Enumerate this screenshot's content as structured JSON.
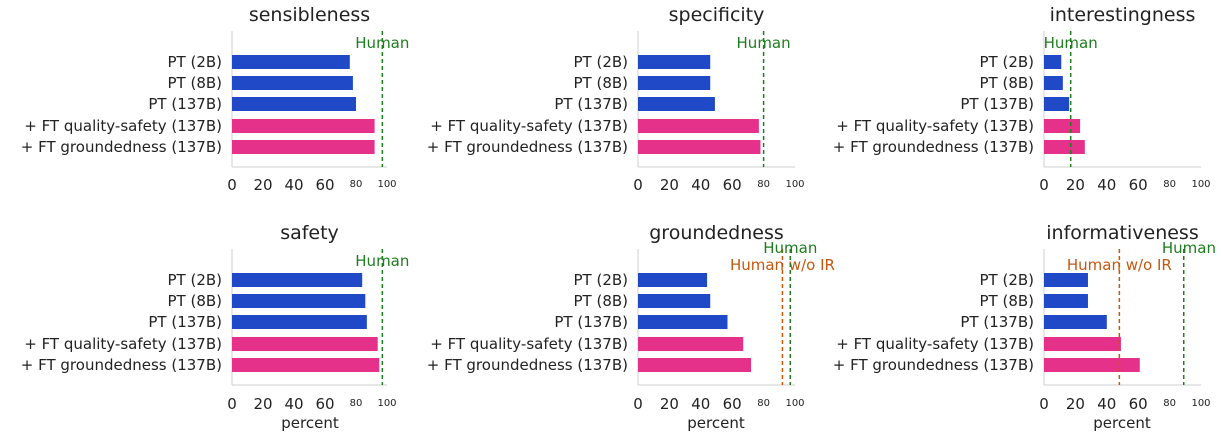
{
  "chart_data": [
    {
      "type": "bar",
      "orientation": "horizontal",
      "title": "sensibleness",
      "xlabel": "",
      "xlim": [
        0,
        100
      ],
      "xticks": [
        {
          "label": "0",
          "value": 0
        },
        {
          "label": "20",
          "value": 20
        },
        {
          "label": "40",
          "value": 40
        },
        {
          "label": "60",
          "value": 60
        },
        {
          "label": "80",
          "value": 80
        },
        {
          "label": "100",
          "value": 100
        }
      ],
      "categories": [
        "PT (2B)",
        "PT (8B)",
        "PT (137B)",
        "+ FT quality-safety (137B)",
        "+ FT groundedness (137B)"
      ],
      "values": [
        76,
        78,
        80,
        92,
        92
      ],
      "bar_colors": [
        "#1f49c7",
        "#1f49c7",
        "#1f49c7",
        "#e6318a",
        "#e6318a"
      ],
      "reference_lines": [
        {
          "label": "Human",
          "value": 97,
          "color": "#1e7d1e"
        }
      ]
    },
    {
      "type": "bar",
      "orientation": "horizontal",
      "title": "specificity",
      "xlabel": "",
      "xlim": [
        0,
        100
      ],
      "xticks": [
        {
          "label": "0",
          "value": 0
        },
        {
          "label": "20",
          "value": 20
        },
        {
          "label": "40",
          "value": 40
        },
        {
          "label": "60",
          "value": 60
        },
        {
          "label": "80",
          "value": 80
        },
        {
          "label": "100",
          "value": 100
        }
      ],
      "categories": [
        "PT (2B)",
        "PT (8B)",
        "PT (137B)",
        "+ FT quality-safety (137B)",
        "+ FT groundedness (137B)"
      ],
      "values": [
        46,
        46,
        49,
        77,
        78
      ],
      "bar_colors": [
        "#1f49c7",
        "#1f49c7",
        "#1f49c7",
        "#e6318a",
        "#e6318a"
      ],
      "reference_lines": [
        {
          "label": "Human",
          "value": 80,
          "color": "#1e7d1e"
        }
      ]
    },
    {
      "type": "bar",
      "orientation": "horizontal",
      "title": "interestingness",
      "xlabel": "",
      "xlim": [
        0,
        100
      ],
      "xticks": [
        {
          "label": "0",
          "value": 0
        },
        {
          "label": "20",
          "value": 20
        },
        {
          "label": "40",
          "value": 40
        },
        {
          "label": "60",
          "value": 60
        },
        {
          "label": "80",
          "value": 80
        },
        {
          "label": "100",
          "value": 100
        }
      ],
      "categories": [
        "PT (2B)",
        "PT (8B)",
        "PT (137B)",
        "+ FT quality-safety (137B)",
        "+ FT groundedness (137B)"
      ],
      "values": [
        11,
        12,
        16,
        23,
        26
      ],
      "bar_colors": [
        "#1f49c7",
        "#1f49c7",
        "#1f49c7",
        "#e6318a",
        "#e6318a"
      ],
      "reference_lines": [
        {
          "label": "Human",
          "value": 17,
          "color": "#1e7d1e"
        }
      ]
    },
    {
      "type": "bar",
      "orientation": "horizontal",
      "title": "safety",
      "xlabel": "percent",
      "xlim": [
        0,
        100
      ],
      "xticks": [
        {
          "label": "0",
          "value": 0
        },
        {
          "label": "20",
          "value": 20
        },
        {
          "label": "40",
          "value": 40
        },
        {
          "label": "60",
          "value": 60
        },
        {
          "label": "80",
          "value": 80
        },
        {
          "label": "100",
          "value": 100
        }
      ],
      "categories": [
        "PT (2B)",
        "PT (8B)",
        "PT (137B)",
        "+ FT quality-safety (137B)",
        "+ FT groundedness (137B)"
      ],
      "values": [
        84,
        86,
        87,
        94,
        95
      ],
      "bar_colors": [
        "#1f49c7",
        "#1f49c7",
        "#1f49c7",
        "#e6318a",
        "#e6318a"
      ],
      "reference_lines": [
        {
          "label": "Human",
          "value": 97,
          "color": "#1e7d1e"
        }
      ]
    },
    {
      "type": "bar",
      "orientation": "horizontal",
      "title": "groundedness",
      "xlabel": "percent",
      "xlim": [
        0,
        100
      ],
      "xticks": [
        {
          "label": "0",
          "value": 0
        },
        {
          "label": "20",
          "value": 20
        },
        {
          "label": "40",
          "value": 40
        },
        {
          "label": "60",
          "value": 60
        },
        {
          "label": "80",
          "value": 80
        },
        {
          "label": "100",
          "value": 100
        }
      ],
      "categories": [
        "PT (2B)",
        "PT (8B)",
        "PT (137B)",
        "+ FT quality-safety (137B)",
        "+ FT groundedness (137B)"
      ],
      "values": [
        44,
        46,
        57,
        67,
        72
      ],
      "bar_colors": [
        "#1f49c7",
        "#1f49c7",
        "#1f49c7",
        "#e6318a",
        "#e6318a"
      ],
      "reference_lines": [
        {
          "label": "Human w/o IR",
          "value": 92,
          "color": "#c4580f"
        },
        {
          "label": "Human",
          "value": 97,
          "color": "#1e7d1e"
        }
      ]
    },
    {
      "type": "bar",
      "orientation": "horizontal",
      "title": "informativeness",
      "xlabel": "percent",
      "xlim": [
        0,
        100
      ],
      "xticks": [
        {
          "label": "0",
          "value": 0
        },
        {
          "label": "20",
          "value": 20
        },
        {
          "label": "40",
          "value": 40
        },
        {
          "label": "60",
          "value": 60
        },
        {
          "label": "80",
          "value": 80
        },
        {
          "label": "100",
          "value": 100
        }
      ],
      "categories": [
        "PT (2B)",
        "PT (8B)",
        "PT (137B)",
        "+ FT quality-safety (137B)",
        "+ FT groundedness (137B)"
      ],
      "values": [
        28,
        28,
        40,
        49,
        61
      ],
      "bar_colors": [
        "#1f49c7",
        "#1f49c7",
        "#1f49c7",
        "#e6318a",
        "#e6318a"
      ],
      "reference_lines": [
        {
          "label": "Human w/o IR",
          "value": 48,
          "color": "#c4580f"
        },
        {
          "label": "Human",
          "value": 89,
          "color": "#1e7d1e"
        }
      ]
    }
  ]
}
